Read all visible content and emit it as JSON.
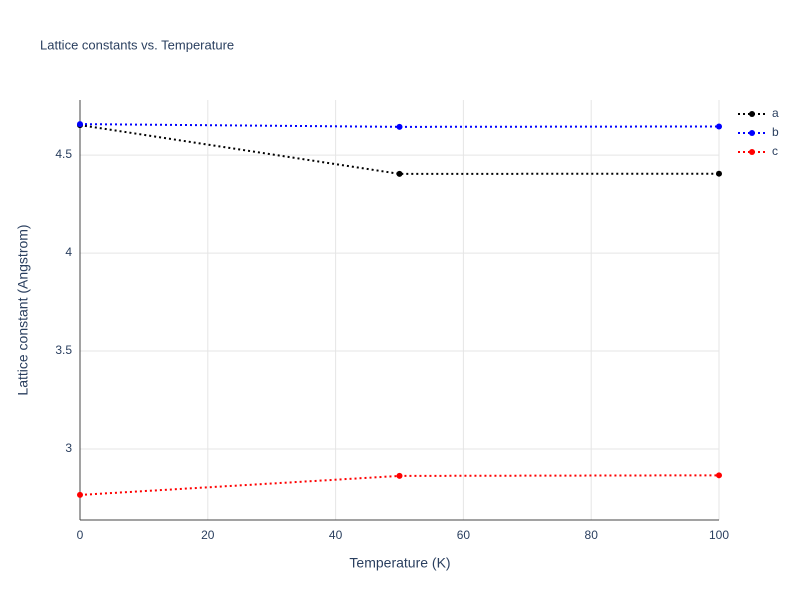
{
  "chart_data": {
    "type": "line",
    "title": "Lattice constants vs. Temperature",
    "x_label": "Temperature (K)",
    "y_label": "Lattice constant (Angstrom)",
    "x": [
      0,
      50,
      100
    ],
    "series": [
      {
        "name": "a",
        "color": "#000000",
        "values": [
          4.653,
          4.404,
          4.405
        ]
      },
      {
        "name": "b",
        "color": "#0000ff",
        "values": [
          4.658,
          4.644,
          4.646
        ]
      },
      {
        "name": "c",
        "color": "#ff0000",
        "values": [
          2.766,
          2.863,
          2.866
        ]
      }
    ],
    "xlim": [
      0,
      100
    ],
    "xticks": [
      0,
      20,
      40,
      60,
      80,
      100
    ],
    "ylim": [
      2.638,
      4.781
    ],
    "yticks": [
      3,
      3.5,
      4,
      4.5
    ],
    "grid": true,
    "legend": "top-right",
    "line_style": "dotted"
  }
}
